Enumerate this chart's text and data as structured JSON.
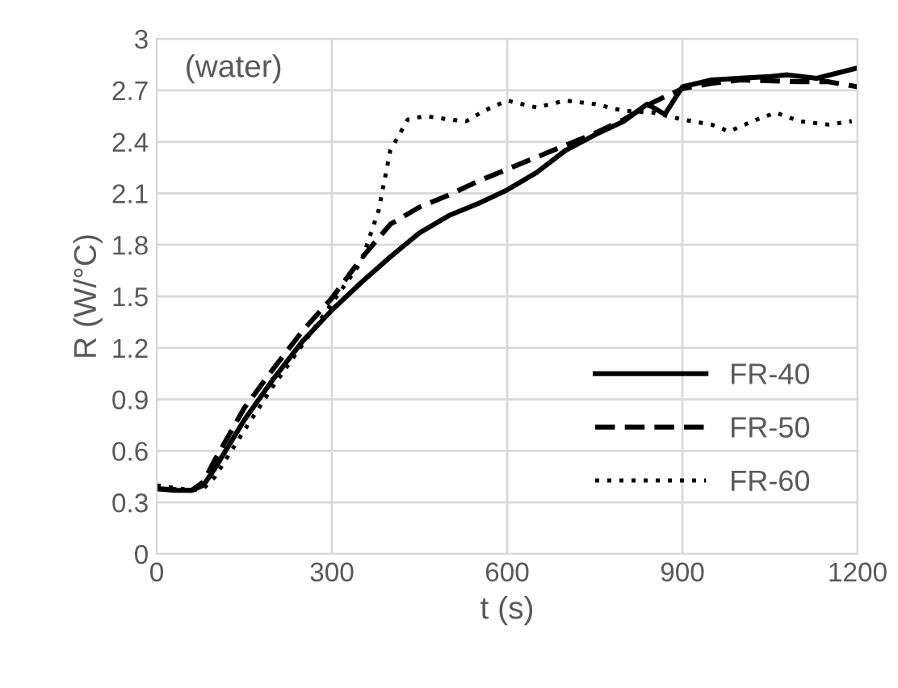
{
  "chart_data": {
    "type": "line",
    "xlabel": "t (s)",
    "ylabel": "R (W/°C)",
    "annotations": [
      "(water)"
    ],
    "xlim": [
      0,
      1200
    ],
    "xticks": [
      0,
      300,
      600,
      900,
      1200
    ],
    "ylim": [
      0,
      3
    ],
    "yticks": [
      0,
      0.3,
      0.6,
      0.9,
      1.2,
      1.5,
      1.8,
      2.1,
      2.4,
      2.7,
      3
    ],
    "grid": true,
    "legend": "bottom right",
    "series": [
      {
        "name": "FR-40",
        "color": "#000000",
        "line_style": "solid",
        "x": [
          0,
          30,
          60,
          80,
          100,
          150,
          200,
          250,
          300,
          350,
          400,
          450,
          500,
          550,
          600,
          650,
          700,
          750,
          800,
          840,
          870,
          900,
          950,
          1000,
          1050,
          1080,
          1130,
          1200
        ],
        "values": [
          0.38,
          0.37,
          0.37,
          0.4,
          0.5,
          0.78,
          1.02,
          1.24,
          1.42,
          1.58,
          1.73,
          1.87,
          1.97,
          2.04,
          2.12,
          2.22,
          2.35,
          2.44,
          2.52,
          2.62,
          2.56,
          2.72,
          2.76,
          2.77,
          2.78,
          2.79,
          2.77,
          2.83
        ]
      },
      {
        "name": "FR-50",
        "color": "#000000",
        "line_style": "dashed",
        "x": [
          0,
          60,
          80,
          100,
          150,
          200,
          250,
          300,
          350,
          400,
          450,
          500,
          550,
          600,
          650,
          700,
          750,
          800,
          850,
          900,
          950,
          1000,
          1100,
          1150,
          1200
        ],
        "values": [
          0.38,
          0.37,
          0.42,
          0.55,
          0.85,
          1.08,
          1.3,
          1.49,
          1.72,
          1.92,
          2.02,
          2.09,
          2.17,
          2.24,
          2.31,
          2.38,
          2.45,
          2.53,
          2.63,
          2.71,
          2.74,
          2.76,
          2.75,
          2.75,
          2.72
        ]
      },
      {
        "name": "FR-60",
        "color": "#000000",
        "line_style": "dotted",
        "x": [
          0,
          60,
          80,
          100,
          150,
          200,
          250,
          300,
          350,
          380,
          400,
          430,
          460,
          500,
          530,
          560,
          600,
          650,
          700,
          750,
          800,
          850,
          900,
          950,
          980,
          1020,
          1060,
          1100,
          1150,
          1190
        ],
        "values": [
          0.4,
          0.37,
          0.38,
          0.45,
          0.72,
          0.98,
          1.22,
          1.46,
          1.7,
          2.0,
          2.35,
          2.53,
          2.55,
          2.53,
          2.52,
          2.58,
          2.64,
          2.6,
          2.64,
          2.62,
          2.58,
          2.57,
          2.53,
          2.5,
          2.46,
          2.52,
          2.57,
          2.52,
          2.5,
          2.52
        ]
      }
    ]
  }
}
